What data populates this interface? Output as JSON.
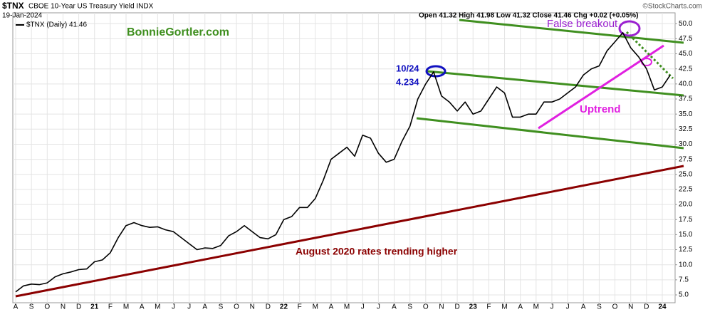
{
  "chart_data": {
    "type": "line",
    "symbol": "$TNX",
    "title": "CBOE 10-Year US Treasury Yield INDX",
    "date": "19-Jan-2024",
    "ohlc": "Open 41.32  High 41.98  Low 41.32  Close 41.46  Chg +0.02 (+0.05%)",
    "source": "©StockCharts.com",
    "annotations": [
      "BonnieGortler.com",
      "10/24",
      "4.234",
      "False breakout",
      "Uptrend",
      "August 2020 rates trending higher"
    ],
    "categories": [
      "A",
      null,
      "S",
      null,
      "O",
      null,
      "N",
      null,
      "D",
      null,
      "21",
      null,
      "F",
      null,
      "M",
      null,
      "A",
      null,
      "M",
      null,
      "J",
      null,
      "J",
      null,
      "A",
      null,
      "S",
      null,
      "O",
      null,
      "N",
      null,
      "D",
      null,
      "22",
      null,
      "F",
      null,
      "M",
      null,
      "A",
      null,
      "M",
      null,
      "J",
      null,
      "J",
      null,
      "A",
      null,
      "S",
      null,
      "O",
      null,
      "N",
      null,
      "D",
      null,
      "23",
      null,
      "F",
      null,
      "M",
      null,
      "A",
      null,
      "M",
      null,
      "J",
      null,
      "J",
      null,
      "A",
      null,
      "S",
      null,
      "O",
      null,
      "N",
      null,
      "D",
      null,
      "24",
      null
    ],
    "series": [
      {
        "name": "$TNX (Daily) 41.46",
        "color": "#000000",
        "values": [
          5.5,
          6.5,
          6.8,
          6.7,
          7.0,
          8.0,
          8.5,
          8.8,
          9.2,
          9.3,
          10.5,
          10.8,
          12.0,
          14.5,
          16.5,
          17.0,
          16.5,
          16.2,
          16.3,
          15.8,
          15.5,
          14.5,
          13.5,
          12.5,
          12.8,
          12.7,
          13.2,
          14.8,
          15.5,
          16.5,
          15.5,
          14.5,
          14.3,
          15.0,
          17.5,
          18.0,
          19.5,
          19.5,
          21.0,
          24.0,
          27.5,
          28.5,
          29.5,
          28.0,
          31.5,
          31.0,
          28.5,
          27.0,
          27.5,
          30.5,
          33.0,
          37.5,
          40.0,
          42.0,
          38.0,
          37.0,
          35.5,
          37.0,
          35.0,
          35.5,
          37.5,
          39.5,
          38.5,
          34.5,
          34.5,
          35.0,
          35.0,
          37.0,
          37.0,
          37.5,
          38.5,
          39.5,
          41.5,
          42.5,
          43.0,
          45.5,
          47.0,
          48.5,
          46.0,
          44.5,
          42.5,
          39.0,
          39.5,
          41.46
        ]
      }
    ],
    "ylim": [
      3.7,
      51.8
    ],
    "yticks": [
      {
        "value": 5,
        "label": "5.0"
      },
      7.5,
      {
        "value": 10,
        "label": "10.0"
      },
      12.5,
      {
        "value": 15,
        "label": "15.0"
      },
      17.5,
      {
        "value": 20,
        "label": "20.0"
      },
      22.5,
      {
        "value": 25,
        "label": "25.0"
      },
      27.5,
      {
        "value": 30,
        "label": "30.0"
      },
      32.5,
      {
        "value": 35,
        "label": "35.0"
      },
      37.5,
      {
        "value": 40,
        "label": "40.0"
      },
      42.5,
      {
        "value": 45,
        "label": "45.0"
      },
      47.5,
      {
        "value": 50,
        "label": "50.0"
      }
    ],
    "grid": true
  }
}
